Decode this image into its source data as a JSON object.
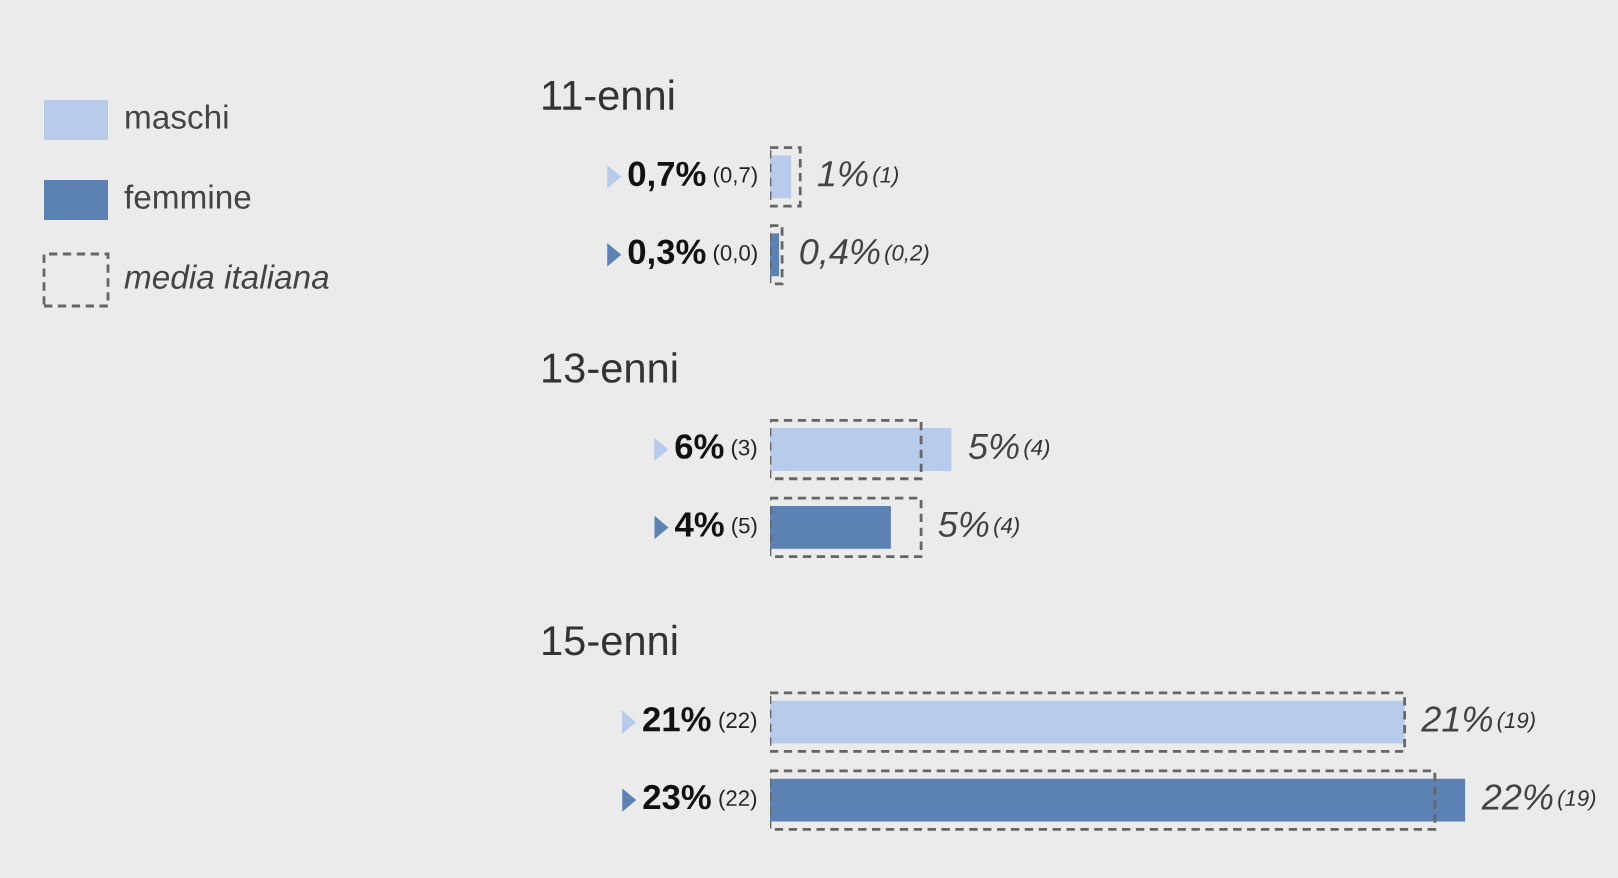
{
  "chart_data": {
    "type": "bar",
    "orientation": "horizontal",
    "legend": "left",
    "categories": [
      "11-enni",
      "13-enni",
      "15-enni"
    ],
    "series": [
      {
        "name": "maschi",
        "color": "#b7cbea",
        "values": [
          0.7,
          6,
          21
        ],
        "value_labels": [
          "0,7% (0,7)",
          "6% (3)",
          "21% (22)"
        ]
      },
      {
        "name": "femmine",
        "color": "#5b82b3",
        "values": [
          0.3,
          4,
          23
        ],
        "value_labels": [
          "0,3% (0,0)",
          "4% (5)",
          "23% (22)"
        ]
      },
      {
        "name": "media italiana",
        "color": "#666666",
        "line_style": "dashed",
        "values": [
          1,
          5,
          21
        ],
        "value_labels": [
          "1% (1)",
          "5% (4)",
          "21% (19)"
        ]
      },
      {
        "color": "#666666",
        "line_style": "dashed",
        "values": [
          0.4,
          5,
          22
        ],
        "value_labels": [
          "0,4% (0,2)",
          "5% (4)",
          "22% (19)"
        ]
      }
    ]
  }
}
